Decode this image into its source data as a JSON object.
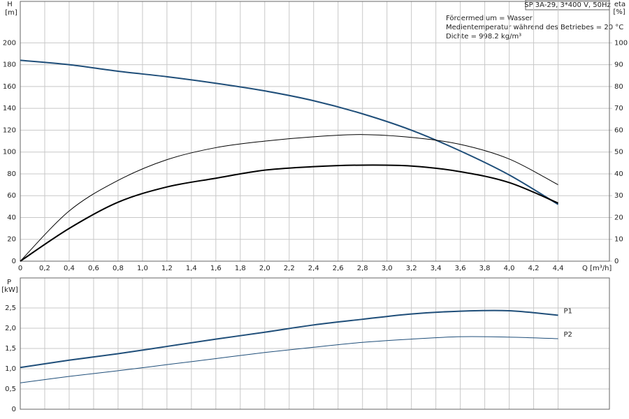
{
  "chart_data": [
    {
      "type": "line",
      "title": "SP 3A-29, 3*400 V, 50Hz",
      "annotations": [
        "Fördermedium = Wasser",
        "Medientemperatur während des Betriebes = 20 °C",
        "Dichte = 998.2 kg/m³"
      ],
      "y_label": "H",
      "y_unit": "[m]",
      "y2_label": "eta",
      "y2_unit": "[%]",
      "x_label": "Q [m³/h]",
      "x": [
        0,
        0.4,
        0.8,
        1.2,
        1.6,
        2.0,
        2.4,
        2.8,
        3.2,
        3.6,
        4.0,
        4.4
      ],
      "series": [
        {
          "color": "#1f4e79",
          "linewidth": 2,
          "values": [
            184,
            180,
            174,
            169,
            163,
            156,
            147,
            135,
            120,
            101,
            79,
            52
          ]
        },
        {
          "color": "#000000",
          "linewidth": 1,
          "axis": "y2",
          "values": [
            0,
            23,
            37,
            46.5,
            52,
            55,
            57,
            58,
            56.7,
            53.5,
            46.8,
            35
          ]
        },
        {
          "color": "#000000",
          "linewidth": 2,
          "axis": "y2",
          "values": [
            0,
            15,
            27,
            34,
            38,
            41.7,
            43.3,
            44,
            43.6,
            41,
            36,
            26.6
          ]
        }
      ],
      "xlim": [
        0,
        4.82
      ],
      "xticks": [
        0,
        {
          "value": 0.2,
          "label": "0,2"
        },
        {
          "value": 0.4,
          "label": "0,4"
        },
        {
          "value": 0.6,
          "label": "0,6"
        },
        {
          "value": 0.8,
          "label": "0,8"
        },
        {
          "value": 1.0,
          "label": "1,0"
        },
        {
          "value": 1.2,
          "label": "1,2"
        },
        {
          "value": 1.4,
          "label": "1,4"
        },
        {
          "value": 1.6,
          "label": "1,6"
        },
        {
          "value": 1.8,
          "label": "1,8"
        },
        {
          "value": 2.0,
          "label": "2,0"
        },
        {
          "value": 2.2,
          "label": "2,2"
        },
        {
          "value": 2.4,
          "label": "2,4"
        },
        {
          "value": 2.6,
          "label": "2,6"
        },
        {
          "value": 2.8,
          "label": "2,8"
        },
        {
          "value": 3.0,
          "label": "3,0"
        },
        {
          "value": 3.2,
          "label": "3,2"
        },
        {
          "value": 3.4,
          "label": "3,4"
        },
        {
          "value": 3.6,
          "label": "3,6"
        },
        {
          "value": 3.8,
          "label": "3,8"
        },
        {
          "value": 4.0,
          "label": "4,0"
        },
        {
          "value": 4.2,
          "label": "4,2"
        },
        {
          "value": 4.4,
          "label": "4,4"
        }
      ],
      "ylim": [
        0,
        238
      ],
      "yticks": [
        0,
        20,
        40,
        60,
        80,
        100,
        120,
        140,
        160,
        180,
        200
      ],
      "y2lim": [
        0,
        119
      ],
      "y2ticks": [
        0,
        10,
        20,
        30,
        40,
        50,
        60,
        70,
        80,
        90,
        100
      ],
      "grid": true
    },
    {
      "type": "line",
      "y_label": "P",
      "y_unit": "[kW]",
      "x": [
        0,
        0.4,
        0.8,
        1.2,
        1.6,
        2.0,
        2.4,
        2.8,
        3.2,
        3.6,
        4.0,
        4.4
      ],
      "series": [
        {
          "name": "P1",
          "color": "#1f4e79",
          "linewidth": 2,
          "values": [
            1.03,
            1.21,
            1.37,
            1.55,
            1.73,
            1.9,
            2.08,
            2.22,
            2.35,
            2.42,
            2.43,
            2.32
          ]
        },
        {
          "name": "P2",
          "color": "#1f4e79",
          "linewidth": 1,
          "values": [
            0.65,
            0.81,
            0.95,
            1.1,
            1.25,
            1.4,
            1.53,
            1.65,
            1.73,
            1.79,
            1.78,
            1.74
          ]
        }
      ],
      "xlim": [
        0,
        4.82
      ],
      "ylim": [
        0,
        3.24
      ],
      "yticks": [
        0,
        {
          "value": 0.5,
          "label": "0,5"
        },
        {
          "value": 1.0,
          "label": "1,0"
        },
        {
          "value": 1.5,
          "label": "1,5"
        },
        {
          "value": 2.0,
          "label": "2,0"
        },
        {
          "value": 2.5,
          "label": "2,5"
        }
      ],
      "grid": true
    }
  ]
}
